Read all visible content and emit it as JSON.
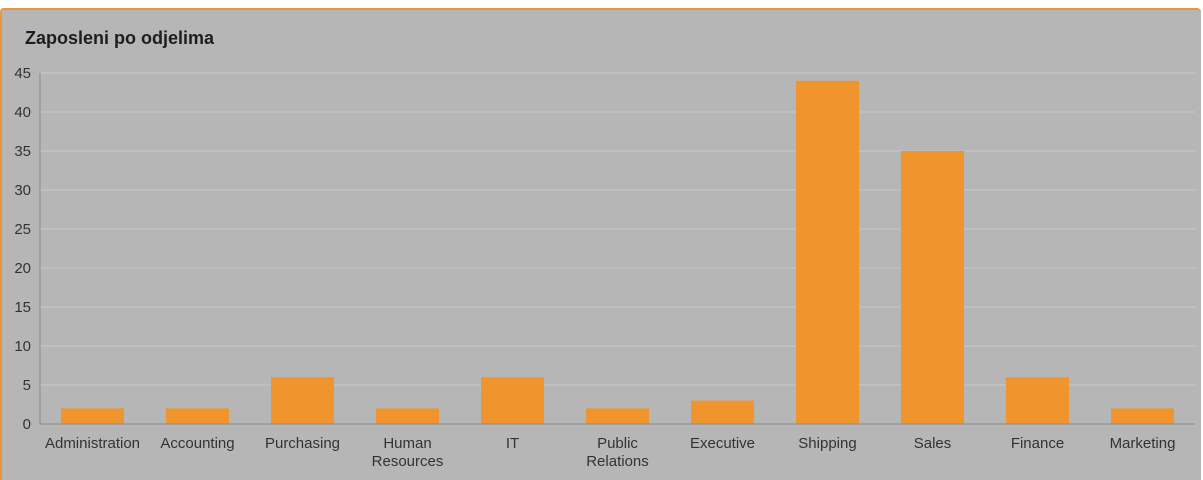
{
  "chart_data": {
    "type": "bar",
    "title": "Zaposleni po odjelima",
    "categories": [
      "Administration",
      "Accounting",
      "Purchasing",
      "Human Resources",
      "IT",
      "Public Relations",
      "Executive",
      "Shipping",
      "Sales",
      "Finance",
      "Marketing"
    ],
    "category_lines": [
      [
        "Administration"
      ],
      [
        "Accounting"
      ],
      [
        "Purchasing"
      ],
      [
        "Human",
        "Resources"
      ],
      [
        "IT"
      ],
      [
        "Public",
        "Relations"
      ],
      [
        "Executive"
      ],
      [
        "Shipping"
      ],
      [
        "Sales"
      ],
      [
        "Finance"
      ],
      [
        "Marketing"
      ]
    ],
    "values": [
      2,
      2,
      6,
      2,
      6,
      2,
      3,
      44,
      35,
      6,
      2
    ],
    "ylim": [
      0,
      45
    ],
    "yticks": [
      0,
      5,
      10,
      15,
      20,
      25,
      30,
      35,
      40,
      45
    ],
    "xlabel": "",
    "ylabel": "",
    "grid": true,
    "legend": "none",
    "colors": {
      "bar": "#f0952e",
      "background": "#b6b6b6",
      "border": "#e8963a"
    }
  }
}
